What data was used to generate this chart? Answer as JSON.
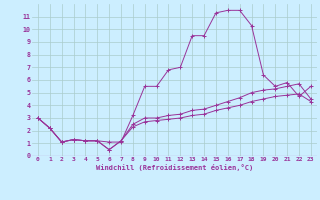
{
  "bg_color": "#cceeff",
  "grid_color": "#aacccc",
  "line_color": "#993399",
  "marker": "+",
  "xlabel": "Windchill (Refroidissement éolien,°C)",
  "xlim": [
    -0.5,
    23.5
  ],
  "ylim": [
    0,
    12
  ],
  "xticks": [
    0,
    1,
    2,
    3,
    4,
    5,
    6,
    7,
    8,
    9,
    10,
    11,
    12,
    13,
    14,
    15,
    16,
    17,
    18,
    19,
    20,
    21,
    22,
    23
  ],
  "yticks": [
    0,
    1,
    2,
    3,
    4,
    5,
    6,
    7,
    8,
    9,
    10,
    11
  ],
  "series": [
    {
      "x": [
        0,
        1,
        2,
        3,
        4,
        5,
        6,
        7,
        8,
        9,
        10,
        11,
        12,
        13,
        14,
        15,
        16,
        17,
        18,
        19,
        20,
        21,
        22,
        23
      ],
      "y": [
        3.0,
        2.2,
        1.1,
        1.3,
        1.2,
        1.2,
        1.1,
        1.1,
        3.2,
        5.5,
        5.5,
        6.8,
        7.0,
        9.5,
        9.5,
        11.3,
        11.5,
        11.5,
        10.3,
        6.4,
        5.5,
        5.8,
        4.7,
        5.5
      ]
    },
    {
      "x": [
        0,
        1,
        2,
        3,
        4,
        5,
        6,
        7,
        8,
        9,
        10,
        11,
        12,
        13,
        14,
        15,
        16,
        17,
        18,
        19,
        20,
        21,
        22,
        23
      ],
      "y": [
        3.0,
        2.2,
        1.1,
        1.3,
        1.2,
        1.2,
        0.5,
        1.2,
        2.5,
        3.0,
        3.0,
        3.2,
        3.3,
        3.6,
        3.7,
        4.0,
        4.3,
        4.6,
        5.0,
        5.2,
        5.3,
        5.5,
        5.7,
        4.5
      ]
    },
    {
      "x": [
        0,
        1,
        2,
        3,
        4,
        5,
        6,
        7,
        8,
        9,
        10,
        11,
        12,
        13,
        14,
        15,
        16,
        17,
        18,
        19,
        20,
        21,
        22,
        23
      ],
      "y": [
        3.0,
        2.2,
        1.1,
        1.3,
        1.2,
        1.2,
        0.5,
        1.2,
        2.3,
        2.7,
        2.8,
        2.9,
        3.0,
        3.2,
        3.3,
        3.6,
        3.8,
        4.0,
        4.3,
        4.5,
        4.7,
        4.8,
        4.9,
        4.3
      ]
    }
  ]
}
